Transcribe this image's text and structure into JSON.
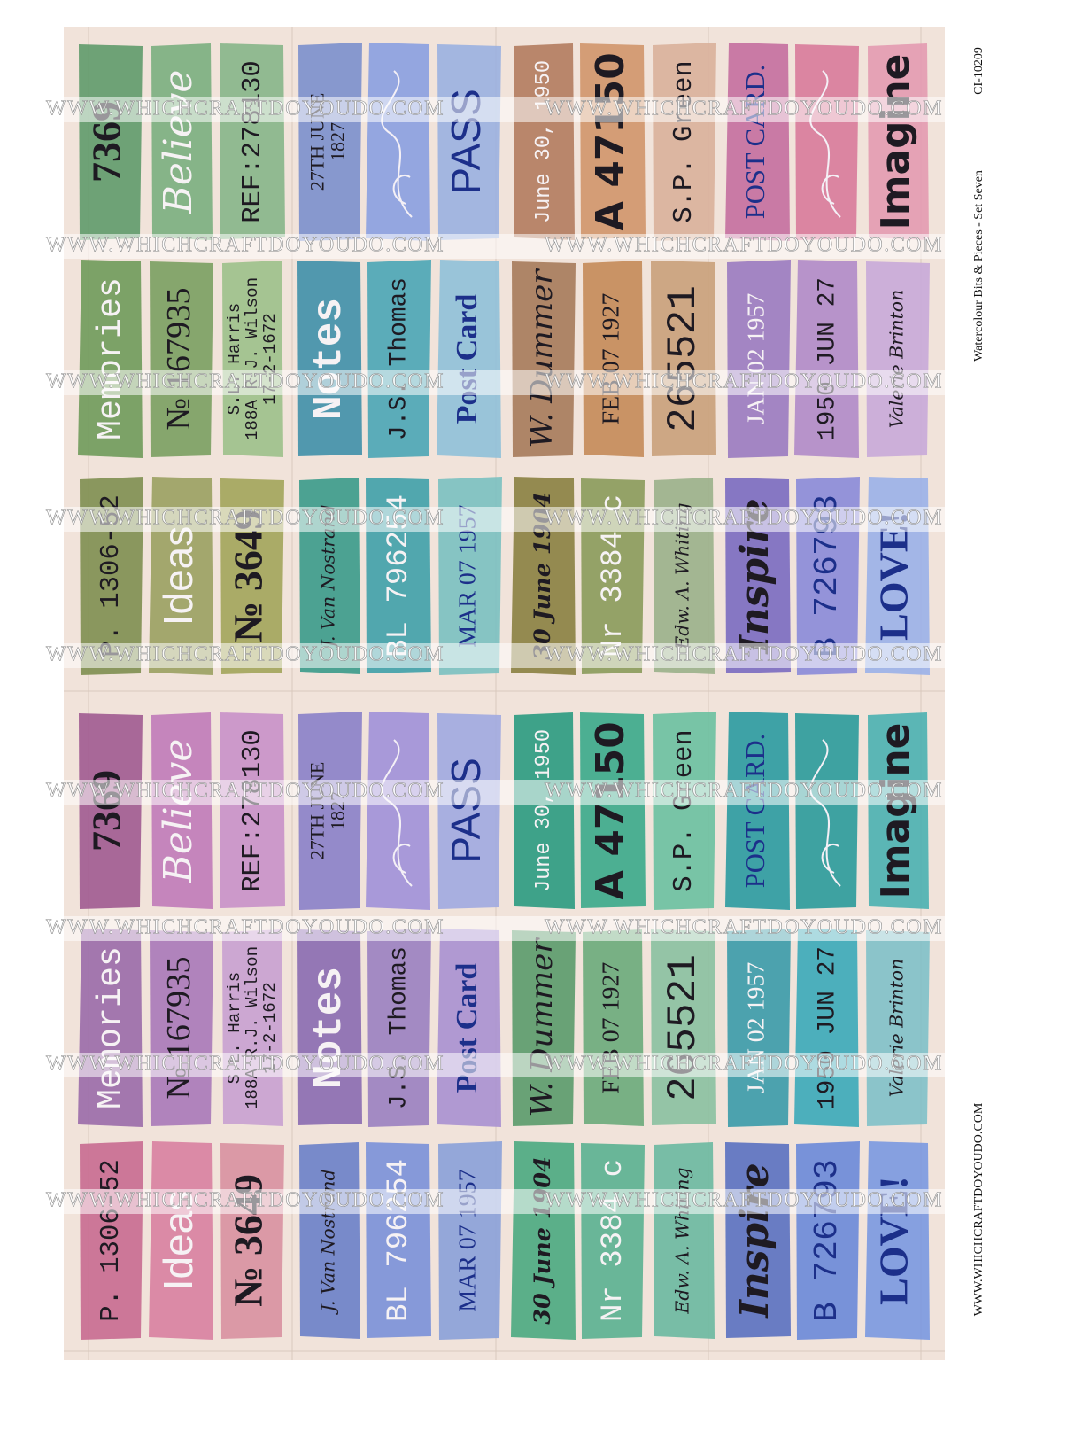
{
  "sheet": {
    "watermark": "WWW.WHICHCRAFTDOYOUDO.COM",
    "code": "CI-10209",
    "subtitle": "Watercolour Bits & Pieces - Set Seven",
    "footer": "WWW.WHICHCRAFTDOYOUDO.COM",
    "blocks": [
      {
        "rows": [
          [
            "7369",
            "Believe",
            "REF:278130",
            [
              "27TH JUNE",
              "1827"
            ],
            null,
            "PASS",
            "June 30, 1950",
            "A 47150",
            "S.P. Green",
            "POST CARD.",
            null,
            "Imagine"
          ],
          [
            "Memories",
            "№ 167935",
            [
              "S.L. Harris",
              "188A R.J. Wilson",
              "17-2-1672"
            ],
            "Notes",
            "J.S. Thomas",
            "Post Card",
            "W. Dummer",
            "FEB 07 1927",
            "265521",
            "JAN 02 1957",
            "1950 JUN 27",
            "Valerie Brinton"
          ],
          [
            "P. 1306-52",
            "Ideas",
            "№ 3649",
            "J. Van Nostrand",
            "BL 796254",
            "MAR 07 1957",
            "30 June 1904",
            "Nr 3384 c",
            "Edw. A. Whiting",
            "Inspire",
            "B 726793",
            "LOVE!"
          ]
        ]
      },
      {
        "rows": [
          [
            "7369",
            "Believe",
            "REF:278130",
            [
              "27TH JUNE",
              "1827"
            ],
            null,
            "PASS",
            "June 30, 1950",
            "A 47150",
            "S.P. Green",
            "POST CARD.",
            null,
            "Imagine"
          ],
          [
            "Memories",
            "№ 167935",
            [
              "S.L. Harris",
              "188A R.J. Wilson",
              "17-2-1672"
            ],
            "Notes",
            "J.S. Thomas",
            "Post Card",
            "W. Dummer",
            "FEB 07 1927",
            "265521",
            "JAN 02 1957",
            "1950 JUN 27",
            "Valerie Brinton"
          ],
          [
            "P. 1306-52",
            "Ideas",
            "№ 3649",
            "J. Van Nostrand",
            "BL 796254",
            "MAR 07 1957",
            "30 June 1904",
            "Nr 3384 c",
            "Edw. A. Whiting",
            "Inspire",
            "B 726793",
            "LOVE!"
          ]
        ]
      }
    ]
  }
}
